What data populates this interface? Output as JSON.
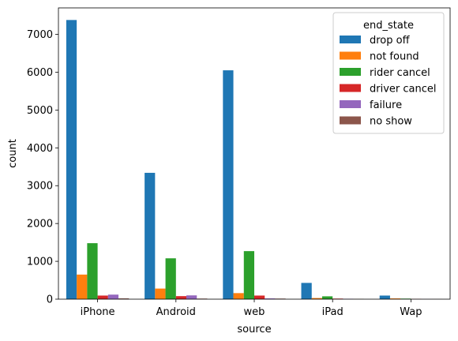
{
  "chart_data": {
    "type": "bar",
    "xlabel": "source",
    "ylabel": "count",
    "ylim": [
      0,
      7700
    ],
    "yticks": [
      0,
      1000,
      2000,
      3000,
      4000,
      5000,
      6000,
      7000
    ],
    "categories": [
      "iPhone",
      "Android",
      "web",
      "iPad",
      "Wap"
    ],
    "legend": {
      "title": "end_state",
      "placement": "top-right"
    },
    "series": [
      {
        "name": "drop off",
        "color": "#1f77b4",
        "values": [
          7380,
          3340,
          6050,
          430,
          95
        ]
      },
      {
        "name": "not found",
        "color": "#ff7f0e",
        "values": [
          650,
          280,
          160,
          30,
          20
        ]
      },
      {
        "name": "rider cancel",
        "color": "#2ca02c",
        "values": [
          1480,
          1080,
          1270,
          75,
          15
        ]
      },
      {
        "name": "driver cancel",
        "color": "#d62728",
        "values": [
          95,
          80,
          95,
          15,
          5
        ]
      },
      {
        "name": "failure",
        "color": "#9467bd",
        "values": [
          120,
          100,
          20,
          10,
          2
        ]
      },
      {
        "name": "no show",
        "color": "#8c564b",
        "values": [
          20,
          15,
          15,
          5,
          2
        ]
      }
    ]
  }
}
